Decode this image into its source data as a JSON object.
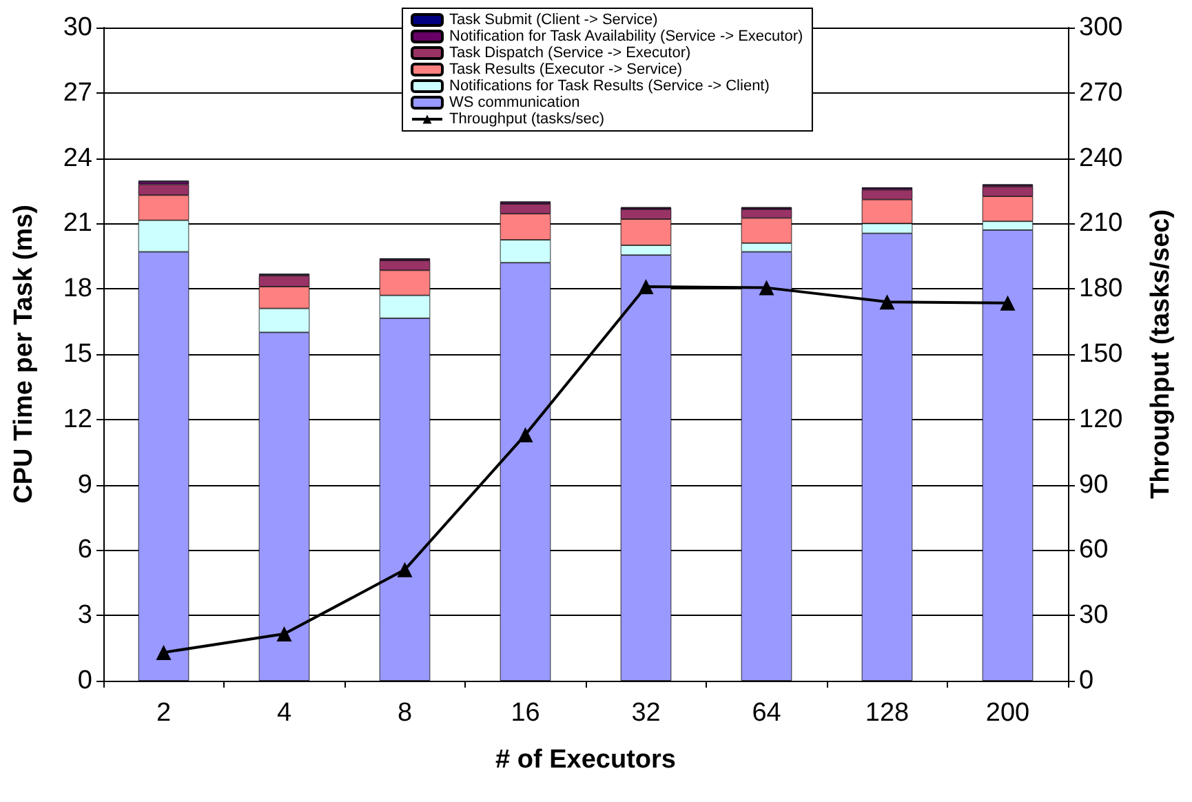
{
  "chart_data": {
    "type": "bar",
    "stacked": true,
    "xlabel": "# of Executors",
    "ylabel": "CPU Time per Task (ms)",
    "y2label": "Throughput (tasks/sec)",
    "categories": [
      "2",
      "4",
      "8",
      "16",
      "32",
      "64",
      "128",
      "200"
    ],
    "series": [
      {
        "name": "WS communication",
        "color": "#9999ff",
        "values": [
          19.7,
          16.0,
          16.65,
          19.2,
          19.55,
          19.7,
          20.55,
          20.7
        ]
      },
      {
        "name": "Notifications for Task Results (Service -> Client)",
        "color": "#ccffff",
        "values": [
          1.45,
          1.1,
          1.05,
          1.05,
          0.45,
          0.4,
          0.45,
          0.4
        ]
      },
      {
        "name": "Task Results (Executor -> Service)",
        "color": "#ff8080",
        "values": [
          1.15,
          1.0,
          1.15,
          1.2,
          1.2,
          1.15,
          1.1,
          1.15
        ]
      },
      {
        "name": "Task Dispatch (Service -> Executor)",
        "color": "#993366",
        "values": [
          0.5,
          0.5,
          0.45,
          0.45,
          0.45,
          0.4,
          0.45,
          0.45
        ]
      },
      {
        "name": "Notification for Task Availability (Service -> Executor)",
        "color": "#660066",
        "values": [
          0.12,
          0.06,
          0.07,
          0.08,
          0.07,
          0.07,
          0.08,
          0.07
        ]
      },
      {
        "name": "Task Submit (Client -> Service)",
        "color": "#000080",
        "values": [
          0.05,
          0.03,
          0.03,
          0.03,
          0.03,
          0.03,
          0.03,
          0.03
        ]
      },
      {
        "name": "Throughput (tasks/sec)",
        "type": "line",
        "axis": "y2",
        "color": "#000000",
        "marker": "triangle",
        "values": [
          13,
          21.5,
          51,
          113,
          181,
          180.5,
          174,
          173.5
        ]
      }
    ],
    "ylim": [
      0,
      30
    ],
    "yticks": [
      0,
      3,
      6,
      9,
      12,
      15,
      18,
      21,
      24,
      27,
      30
    ],
    "y2lim": [
      0,
      300
    ],
    "y2ticks": [
      0,
      30,
      60,
      90,
      120,
      150,
      180,
      210,
      240,
      270,
      300
    ],
    "grid": "y",
    "legend": "top"
  }
}
